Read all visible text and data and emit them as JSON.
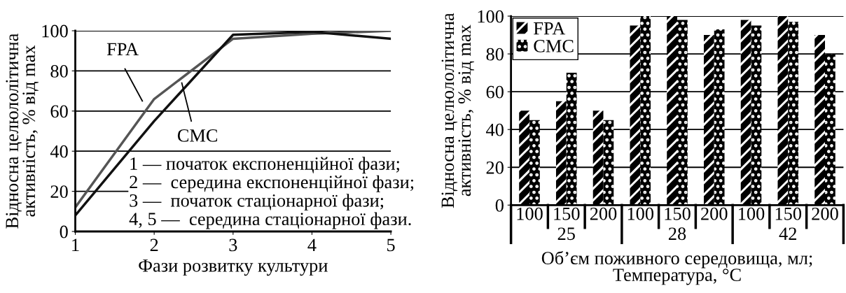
{
  "chart_data": [
    {
      "type": "line",
      "xlabel": "Фази розвитку культури",
      "ylabel": "Відносна целюлолітична\nактивність, % від max",
      "x": [
        1,
        2,
        3,
        4,
        5
      ],
      "series": [
        {
          "name": "FPA",
          "color": "#555555",
          "values": [
            12,
            66,
            96,
            98.5,
            100
          ]
        },
        {
          "name": "CMC",
          "color": "#111111",
          "values": [
            8,
            55,
            98,
            99.5,
            96
          ]
        }
      ],
      "xlim": [
        1,
        5
      ],
      "xticks": [
        1,
        2,
        3,
        4,
        5
      ],
      "ylim": [
        0,
        100
      ],
      "yticks": [
        0,
        20,
        40,
        60,
        80,
        100
      ],
      "grid": "y",
      "legend": false,
      "annotations": [
        "1 — початок експоненційної фази;",
        "2 —  середина експоненційної фази;",
        "3 —  початок стаціонарної фази;",
        "4, 5 —  середина стаціонарної фази."
      ]
    },
    {
      "type": "bar",
      "ylabel": "Відносна целюлолітична\nактивність, % від max",
      "xlabel": "Об’єм поживного середовища, мл;\nТемпература, °C",
      "categories": [
        "100",
        "150",
        "200",
        "100",
        "150",
        "200",
        "100",
        "150",
        "200"
      ],
      "series": [
        {
          "name": "FPA",
          "color": "#000000",
          "values": [
            50,
            55,
            50,
            95,
            100,
            90,
            98,
            100,
            90
          ]
        },
        {
          "name": "CMC",
          "color": "#000000",
          "values": [
            45,
            70,
            45,
            100,
            98,
            93,
            95,
            97,
            80
          ]
        }
      ],
      "ylim": [
        0,
        100
      ],
      "yticks": [
        0,
        20,
        40,
        60,
        80,
        100
      ],
      "grid": "y",
      "legend": "top left",
      "annotations": [
        "25",
        "28",
        "42"
      ]
    }
  ]
}
